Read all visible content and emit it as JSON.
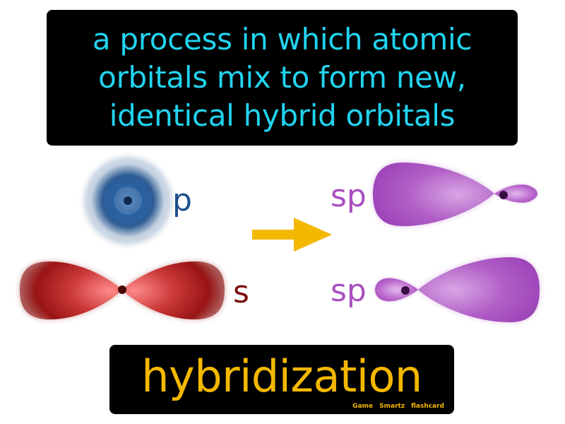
{
  "definition": {
    "lines": [
      "a process in which atomic",
      "orbitals mix to form new,",
      "identical hybrid orbitals"
    ]
  },
  "diagram": {
    "labels": {
      "p": "p",
      "s": "s",
      "sp_top": "sp",
      "sp_bottom": "sp"
    },
    "colors": {
      "p_orbital": "#1d4f8c",
      "s_orbital": "#a11818",
      "sp_orbital": "#a94fc0",
      "arrow": "#f4b800",
      "p_label": "#1d4f8c",
      "s_label": "#7a0f0f",
      "sp_label": "#a94fc0"
    },
    "arrow_icon": "right-arrow-icon"
  },
  "term": {
    "word": "hybridization",
    "credit": "Game Smartz flashcard"
  },
  "colors": {
    "definition_text": "#21d4f0",
    "term_text": "#f4b800",
    "box_background": "#000000"
  }
}
